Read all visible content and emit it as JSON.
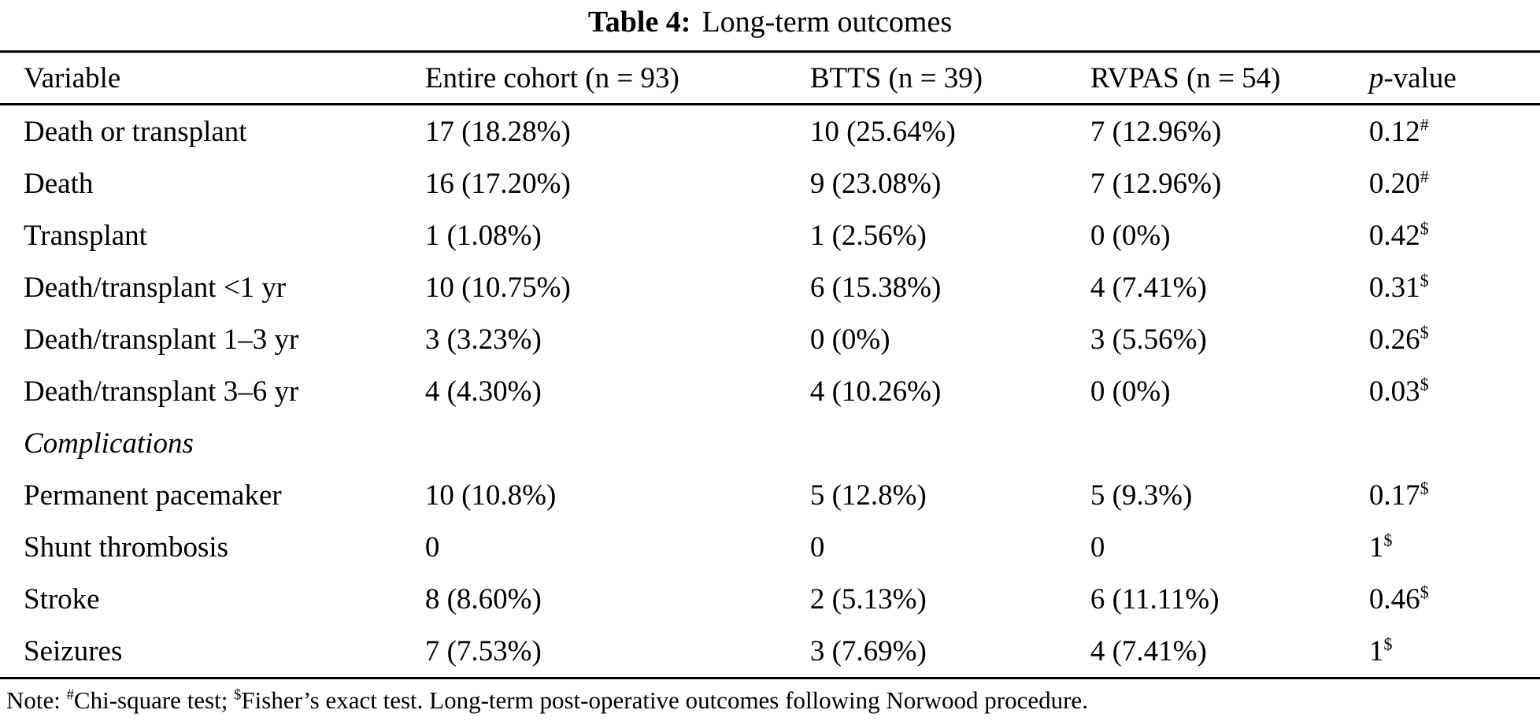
{
  "table": {
    "title": {
      "label": "Table 4:",
      "caption": "Long-term outcomes"
    },
    "columns": [
      {
        "label": "Variable"
      },
      {
        "label": "Entire cohort (n = 93)"
      },
      {
        "label": "BTTS (n = 39)"
      },
      {
        "label": "RVPAS (n = 54)"
      },
      {
        "label_italic": "p",
        "label_rest": "-value"
      }
    ],
    "rows": [
      {
        "variable": "Death or transplant",
        "entire": "17 (18.28%)",
        "btts": "10 (25.64%)",
        "rvpas": "7 (12.96%)",
        "p": "0.12",
        "p_sup": "#"
      },
      {
        "variable": "Death",
        "entire": "16 (17.20%)",
        "btts": "9 (23.08%)",
        "rvpas": "7 (12.96%)",
        "p": "0.20",
        "p_sup": "#"
      },
      {
        "variable": "Transplant",
        "entire": "1 (1.08%)",
        "btts": "1 (2.56%)",
        "rvpas": "0 (0%)",
        "p": "0.42",
        "p_sup": "$"
      },
      {
        "variable": "Death/transplant <1 yr",
        "entire": "10 (10.75%)",
        "btts": "6 (15.38%)",
        "rvpas": "4 (7.41%)",
        "p": "0.31",
        "p_sup": "$"
      },
      {
        "variable": "Death/transplant 1–3 yr",
        "entire": "3 (3.23%)",
        "btts": "0 (0%)",
        "rvpas": "3 (5.56%)",
        "p": "0.26",
        "p_sup": "$"
      },
      {
        "variable": "Death/transplant 3–6 yr",
        "entire": "4 (4.30%)",
        "btts": "4 (10.26%)",
        "rvpas": "0 (0%)",
        "p": "0.03",
        "p_sup": "$"
      },
      {
        "variable": "Complications",
        "section": true
      },
      {
        "variable": "Permanent pacemaker",
        "entire": "10 (10.8%)",
        "btts": "5 (12.8%)",
        "rvpas": "5 (9.3%)",
        "p": "0.17",
        "p_sup": "$"
      },
      {
        "variable": "Shunt thrombosis",
        "entire": "0",
        "btts": "0",
        "rvpas": "0",
        "p": "1",
        "p_sup": "$"
      },
      {
        "variable": "Stroke",
        "entire": "8 (8.60%)",
        "btts": "2 (5.13%)",
        "rvpas": "6 (11.11%)",
        "p": "0.46",
        "p_sup": "$"
      },
      {
        "variable": "Seizures",
        "entire": "7 (7.53%)",
        "btts": "3 (7.69%)",
        "rvpas": "4 (7.41%)",
        "p": "1",
        "p_sup": "$"
      }
    ],
    "note": {
      "prefix": "Note: ",
      "marker1": "#",
      "text1": "Chi-square test; ",
      "marker2": "$",
      "text2": "Fisher’s exact test. Long-term post-operative outcomes following Norwood procedure."
    }
  }
}
